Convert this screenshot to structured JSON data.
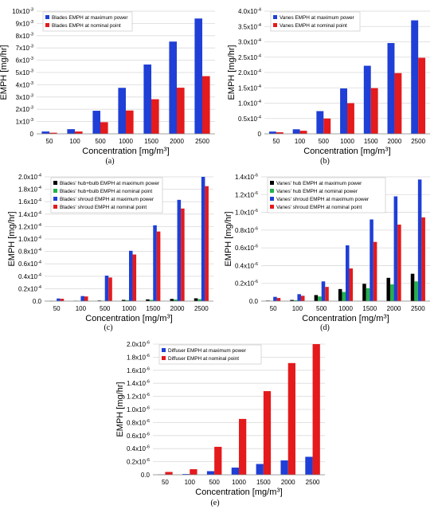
{
  "colors": {
    "blue": "#1f3fd6",
    "red": "#e41a1c",
    "black": "#000000",
    "green": "#22b14c",
    "grid": "#d9d9d9"
  },
  "chart_data": [
    {
      "panel": "(a)",
      "type": "bar",
      "categories": [
        "50",
        "100",
        "500",
        "1000",
        "1500",
        "2000",
        "2500"
      ],
      "series": [
        {
          "name": "Blades EMPH at maximum power",
          "color": "blue",
          "values": [
            0.00019,
            0.00038,
            0.00188,
            0.00375,
            0.00565,
            0.00752,
            0.0094
          ]
        },
        {
          "name": "Blades EMPH at nominal point",
          "color": "red",
          "values": [
            9e-05,
            0.00019,
            0.00095,
            0.0019,
            0.00282,
            0.00376,
            0.0047
          ]
        }
      ],
      "xlabel": "Concentration [mg/m3]",
      "ylabel": "EMPH [mg/hr]",
      "ylim": [
        0,
        0.01
      ],
      "yticks": [
        "0",
        "1x10-3",
        "2x10-3",
        "3x10-3",
        "4x10-3",
        "5x10-3",
        "6x10-3",
        "7x10-3",
        "8x10-3",
        "9x10-3",
        "10x10-3"
      ],
      "grid": true,
      "legend": "top-left"
    },
    {
      "panel": "(b)",
      "type": "bar",
      "categories": [
        "50",
        "100",
        "500",
        "1000",
        "1500",
        "2000",
        "2500"
      ],
      "series": [
        {
          "name": "Vanes EMPH at maximum power",
          "color": "blue",
          "values": [
            7.4e-06,
            1.48e-05,
            7.4e-05,
            0.000148,
            0.000222,
            0.000296,
            0.00037
          ]
        },
        {
          "name": "Vanes EMPH at nominal point",
          "color": "red",
          "values": [
            5e-06,
            1e-05,
            5e-05,
            0.0001,
            0.000149,
            0.000198,
            0.000248
          ]
        }
      ],
      "xlabel": "Concentration [mg/m3]",
      "ylabel": "EMPH [mg/hr]",
      "ylim": [
        0,
        0.0004
      ],
      "yticks": [
        "0",
        "0.5x10-4",
        "1.0x10-4",
        "1.5x10-4",
        "2.0x10-4",
        "2.5x10-4",
        "3.0x10-4",
        "3.5x10-4",
        "4.0x10-4"
      ],
      "grid": true,
      "legend": "top-left"
    },
    {
      "panel": "(c)",
      "type": "bar",
      "categories": [
        "50",
        "100",
        "500",
        "1000",
        "1500",
        "2000",
        "2500"
      ],
      "series": [
        {
          "name": "Blades' hub+bulb EMPH at maximum power",
          "color": "black",
          "values": [
            3e-07,
            6e-07,
            1e-06,
            2e-06,
            2.8e-06,
            3.5e-06,
            4.5e-06
          ]
        },
        {
          "name": "Blades' hub+bulb EMPH at nominal point",
          "color": "green",
          "values": [
            2e-07,
            4e-07,
            7e-07,
            1.5e-06,
            2e-06,
            2.6e-06,
            3.2e-06
          ]
        },
        {
          "name": "Blades' shroud EMPH at maximum power",
          "color": "blue",
          "values": [
            4.2e-06,
            8.1e-06,
            4.1e-05,
            8.1e-05,
            0.000122,
            0.000163,
            0.000203
          ]
        },
        {
          "name": "Blades' shroud EMPH at nominal point",
          "color": "red",
          "values": [
            3.8e-06,
            7.5e-06,
            3.8e-05,
            7.5e-05,
            0.000112,
            0.000149,
            0.000185
          ]
        }
      ],
      "xlabel": "Concentration [mg/m3]",
      "ylabel": "EMPH [mg/hr]",
      "ylim": [
        0,
        0.0002
      ],
      "yticks": [
        "0.0",
        "0.2x10-4",
        "0.4x10-4",
        "0.6x10-4",
        "0.8x10-4",
        "1.0x10-4",
        "1.2x10-4",
        "1.4x10-4",
        "1.6x10-4",
        "1.8x10-4",
        "2.0x10-4"
      ],
      "grid": true,
      "legend": "top-left"
    },
    {
      "panel": "(d)",
      "type": "bar",
      "categories": [
        "50",
        "100",
        "500",
        "1000",
        "1500",
        "2000",
        "2500"
      ],
      "series": [
        {
          "name": "Vanes' hub EMPH at maximum power",
          "color": "black",
          "values": [
            6e-09,
            1.3e-08,
            6.8e-08,
            1.36e-07,
            1.95e-07,
            2.62e-07,
            3.08e-07
          ]
        },
        {
          "name": "Vanes' hub EMPH at nominal power",
          "color": "green",
          "values": [
            4e-09,
            9e-09,
            5.2e-08,
            1.03e-07,
            1.45e-07,
            1.88e-07,
            2.22e-07
          ]
        },
        {
          "name": "Vanes' shroud EMPH at maximum power",
          "color": "blue",
          "values": [
            4.8e-08,
            7.8e-08,
            2.22e-07,
            6.28e-07,
            9.2e-07,
            1.18e-06,
            1.37e-06
          ]
        },
        {
          "name": "Vanes' shroud EMPH at nominal point",
          "color": "red",
          "values": [
            3.5e-08,
            6e-08,
            1.6e-07,
            3.68e-07,
            6.67e-07,
            8.62e-07,
            9.43e-07
          ]
        }
      ],
      "xlabel": "Concentration [mg/m3]",
      "ylabel": "EMPH [mg/hr]",
      "ylim": [
        0,
        1.4e-06
      ],
      "yticks": [
        "0.0",
        "0.2x10-6",
        "0.4x10-6",
        "0.6x10-6",
        "0.8x10-6",
        "1.0x10-6",
        "1.2x10-6",
        "1.4x10-6"
      ],
      "grid": true,
      "legend": "top-left"
    },
    {
      "panel": "(e)",
      "type": "bar",
      "categories": [
        "50",
        "100",
        "500",
        "1000",
        "1500",
        "2000",
        "2500"
      ],
      "series": [
        {
          "name": "Diffuser EMPH at maximum power",
          "color": "blue",
          "values": [
            6e-09,
            1.1e-08,
            5.5e-08,
            1.1e-07,
            1.65e-07,
            2.2e-07,
            2.75e-07
          ]
        },
        {
          "name": "Diffuser EMPH at nominal point",
          "color": "red",
          "values": [
            4.3e-08,
            8.5e-08,
            4.28e-07,
            8.55e-07,
            1.28e-06,
            1.71e-06,
            2e-06
          ]
        }
      ],
      "xlabel": "Concentration [mg/m3]",
      "ylabel": "EMPH [mg/hr]",
      "ylim": [
        0,
        2e-06
      ],
      "yticks": [
        "0.0",
        "0.2x10-6",
        "0.4x10-6",
        "0.6x10-6",
        "0.8x10-6",
        "1.0x10-6",
        "1.2x10-6",
        "1.4x10-6",
        "1.6x10-6",
        "1.8x10-6",
        "2.0x10-6"
      ],
      "grid": true,
      "legend": "top-left"
    }
  ]
}
